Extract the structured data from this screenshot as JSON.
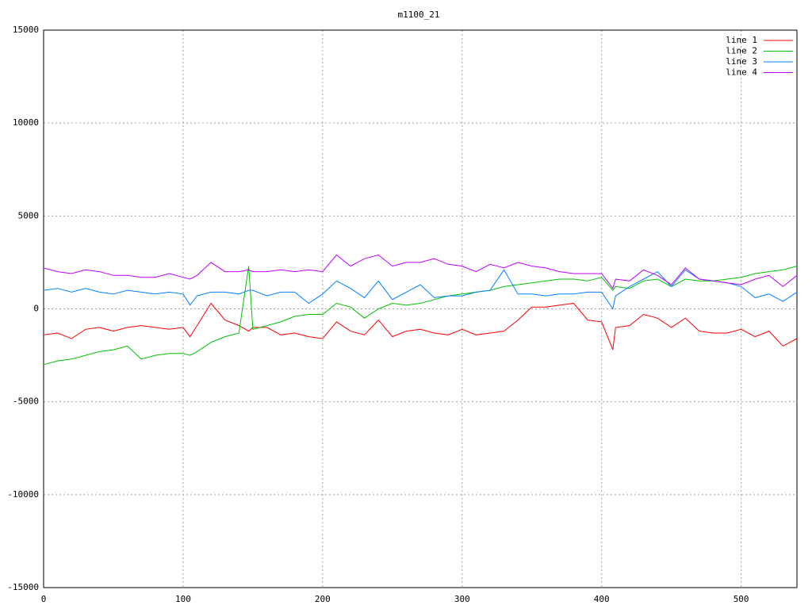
{
  "chart_data": {
    "type": "line",
    "title": "m1100_21",
    "x": [
      0,
      10,
      20,
      30,
      40,
      50,
      60,
      70,
      80,
      90,
      100,
      105,
      110,
      120,
      130,
      140,
      147,
      150,
      160,
      170,
      180,
      190,
      200,
      210,
      220,
      230,
      240,
      250,
      260,
      270,
      280,
      290,
      300,
      310,
      320,
      330,
      340,
      350,
      360,
      370,
      380,
      390,
      400,
      408,
      410,
      420,
      430,
      440,
      450,
      460,
      470,
      480,
      490,
      500,
      510,
      520,
      530,
      540
    ],
    "series": [
      {
        "name": "line 1",
        "color": "#ff0000",
        "values": [
          -1400,
          -1300,
          -1600,
          -1100,
          -1000,
          -1200,
          -1000,
          -900,
          -1000,
          -1100,
          -1000,
          -1500,
          -900,
          300,
          -600,
          -900,
          -1200,
          -1000,
          -1000,
          -1400,
          -1300,
          -1500,
          -1600,
          -700,
          -1200,
          -1400,
          -600,
          -1500,
          -1200,
          -1100,
          -1300,
          -1400,
          -1100,
          -1400,
          -1300,
          -1200,
          -600,
          100,
          100,
          200,
          300,
          -600,
          -700,
          -2200,
          -1000,
          -900,
          -300,
          -500,
          -1000,
          -500,
          -1200,
          -1300,
          -1300,
          -1100,
          -1500,
          -1200,
          -2000,
          -1600
        ]
      },
      {
        "name": "line 2",
        "color": "#00c000",
        "values": [
          -3000,
          -2800,
          -2700,
          -2500,
          -2300,
          -2200,
          -2000,
          -2700,
          -2500,
          -2400,
          -2400,
          -2500,
          -2300,
          -1800,
          -1500,
          -1300,
          2300,
          -1100,
          -900,
          -700,
          -400,
          -300,
          -300,
          300,
          100,
          -500,
          0,
          300,
          200,
          300,
          500,
          700,
          800,
          900,
          1000,
          1200,
          1300,
          1400,
          1500,
          1600,
          1600,
          1500,
          1700,
          1000,
          1200,
          1100,
          1500,
          1600,
          1200,
          1600,
          1500,
          1500,
          1600,
          1700,
          1900,
          2000,
          2100,
          2300
        ]
      },
      {
        "name": "line 3",
        "color": "#0080ff",
        "values": [
          1000,
          1100,
          900,
          1100,
          900,
          800,
          1000,
          900,
          800,
          900,
          800,
          200,
          700,
          900,
          900,
          800,
          1000,
          1000,
          700,
          900,
          900,
          300,
          800,
          1500,
          1100,
          600,
          1500,
          500,
          900,
          1300,
          600,
          700,
          700,
          900,
          1000,
          2100,
          800,
          800,
          700,
          800,
          800,
          900,
          900,
          0,
          700,
          1200,
          1600,
          2000,
          1200,
          2100,
          1600,
          1500,
          1400,
          1200,
          600,
          800,
          400,
          900
        ]
      },
      {
        "name": "line 4",
        "color": "#c000ff",
        "values": [
          2200,
          2000,
          1900,
          2100,
          2000,
          1800,
          1800,
          1700,
          1700,
          1900,
          1700,
          1600,
          1800,
          2500,
          2000,
          2000,
          2100,
          2000,
          2000,
          2100,
          2000,
          2100,
          2000,
          2900,
          2300,
          2700,
          2900,
          2300,
          2500,
          2500,
          2700,
          2400,
          2300,
          2000,
          2400,
          2200,
          2500,
          2300,
          2200,
          2000,
          1900,
          1900,
          1900,
          1100,
          1600,
          1500,
          2100,
          1800,
          1300,
          2200,
          1600,
          1500,
          1400,
          1300,
          1600,
          1800,
          1200,
          1800
        ]
      }
    ],
    "xlim": [
      0,
      540
    ],
    "ylim": [
      -15000,
      15000
    ],
    "xticks": [
      0,
      100,
      200,
      300,
      400,
      500
    ],
    "yticks": [
      -15000,
      -10000,
      -5000,
      0,
      5000,
      10000,
      15000
    ],
    "grid": true,
    "legend": "top-right"
  }
}
